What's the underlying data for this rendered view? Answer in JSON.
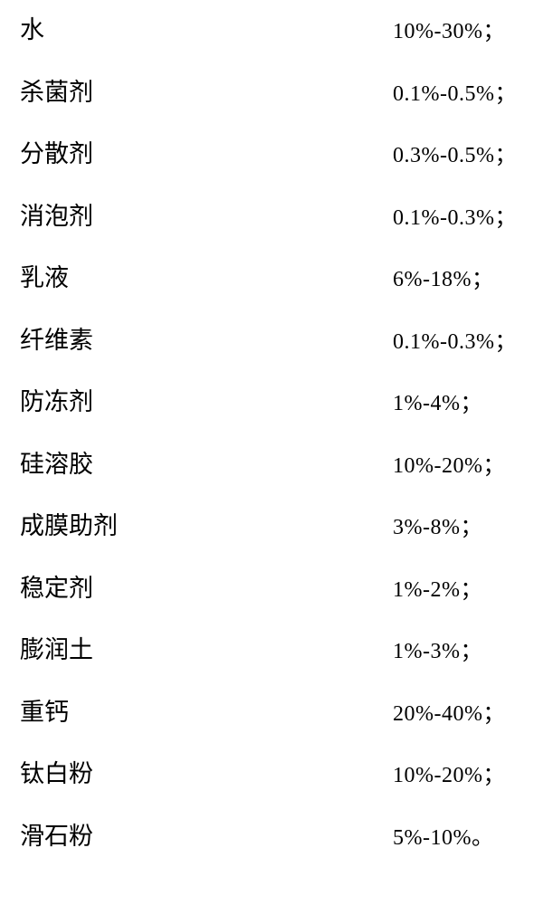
{
  "composition_table": {
    "rows": [
      {
        "label": "水",
        "value": "10%-30%；"
      },
      {
        "label": "杀菌剂",
        "value": "0.1%-0.5%；"
      },
      {
        "label": "分散剂",
        "value": "0.3%-0.5%；"
      },
      {
        "label": "消泡剂",
        "value": "0.1%-0.3%；"
      },
      {
        "label": "乳液",
        "value": "6%-18%；"
      },
      {
        "label": "纤维素",
        "value": "0.1%-0.3%；"
      },
      {
        "label": "防冻剂",
        "value": "1%-4%；"
      },
      {
        "label": "硅溶胶",
        "value": "10%-20%；"
      },
      {
        "label": "成膜助剂",
        "value": "3%-8%；"
      },
      {
        "label": "稳定剂",
        "value": "1%-2%；"
      },
      {
        "label": "膨润土",
        "value": "1%-3%；"
      },
      {
        "label": "重钙",
        "value": "20%-40%；"
      },
      {
        "label": "钛白粉",
        "value": "10%-20%；"
      },
      {
        "label": "滑石粉",
        "value": "5%-10%。"
      }
    ],
    "style": {
      "label_fontsize": 27,
      "value_fontsize": 24,
      "label_color": "#000000",
      "value_color": "#000000",
      "background_color": "#ffffff",
      "row_height": 68.5,
      "label_col_width": 412
    }
  }
}
